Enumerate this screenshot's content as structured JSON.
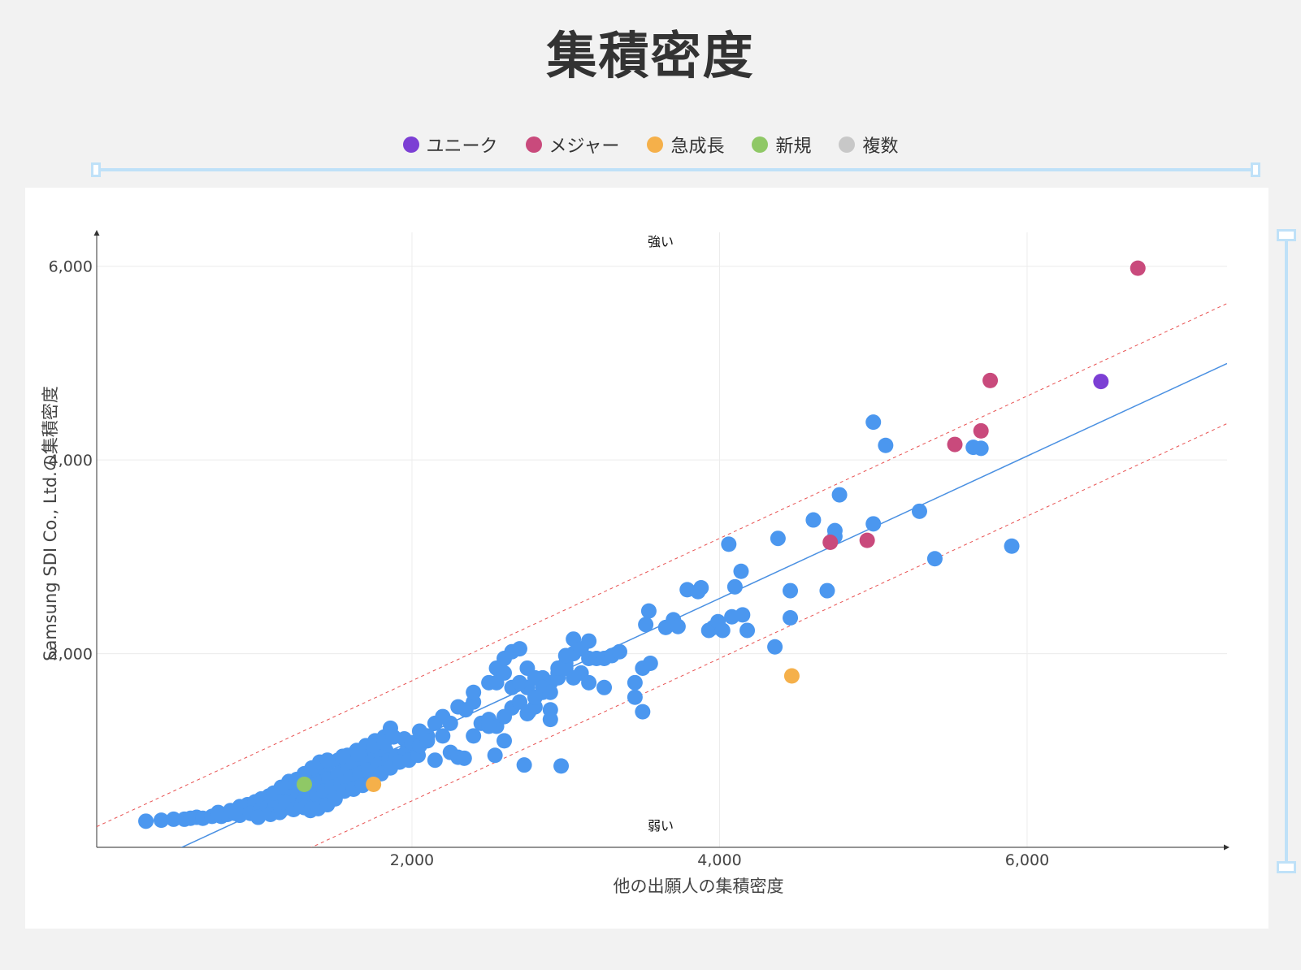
{
  "title": "集積密度",
  "legend": [
    {
      "label": "ユニーク",
      "color": "#7c3fd4"
    },
    {
      "label": "メジャー",
      "color": "#c94a7c"
    },
    {
      "label": "急成長",
      "color": "#f5b04a"
    },
    {
      "label": "新規",
      "color": "#8fc866"
    },
    {
      "label": "複数",
      "color": "#c8c8c8"
    }
  ],
  "chart_data": {
    "type": "scatter",
    "title": "集積密度",
    "xlabel": "他の出願人の集積密度",
    "ylabel": "Samsung SDI Co., Ltd.の集積密度",
    "xlim": [
      -50,
      7300
    ],
    "ylim": [
      0,
      6350
    ],
    "xticks": [
      2000,
      4000,
      6000
    ],
    "xtick_labels": [
      "2,000",
      "4,000",
      "6,000"
    ],
    "yticks": [
      2000,
      4000,
      6000
    ],
    "ytick_labels": [
      "2,000",
      "4,000",
      "6,000"
    ],
    "grid": true,
    "annotations": {
      "top": "強い",
      "bottom": "弱い"
    },
    "trend_line": {
      "slope": 0.735,
      "intercept": -370,
      "color": "#4a90e2"
    },
    "band_offset": 620,
    "band_color": "#e85050",
    "default_color": "#4b97ef",
    "points": [
      [
        270,
        270
      ],
      [
        370,
        280
      ],
      [
        450,
        290
      ],
      [
        520,
        290
      ],
      [
        560,
        300
      ],
      [
        600,
        310
      ],
      [
        640,
        300
      ],
      [
        700,
        320
      ],
      [
        760,
        320
      ],
      [
        800,
        340
      ],
      [
        850,
        350
      ],
      [
        900,
        360
      ],
      [
        950,
        380
      ],
      [
        1000,
        400
      ],
      [
        1050,
        420
      ],
      [
        1100,
        440
      ],
      [
        1150,
        470
      ],
      [
        1200,
        500
      ],
      [
        1250,
        530
      ],
      [
        1300,
        580
      ],
      [
        1350,
        620
      ],
      [
        1400,
        680
      ],
      [
        1450,
        720
      ],
      [
        740,
        360
      ],
      [
        820,
        380
      ],
      [
        880,
        420
      ],
      [
        930,
        440
      ],
      [
        980,
        470
      ],
      [
        1020,
        500
      ],
      [
        1070,
        530
      ],
      [
        1120,
        560
      ],
      [
        1170,
        600
      ],
      [
        1220,
        650
      ],
      [
        1270,
        700
      ],
      [
        1320,
        740
      ],
      [
        1360,
        800
      ],
      [
        1410,
        830
      ],
      [
        1450,
        860
      ],
      [
        1520,
        900
      ],
      [
        1580,
        950
      ],
      [
        1640,
        1000
      ],
      [
        1700,
        1050
      ],
      [
        1760,
        1100
      ],
      [
        1820,
        1140
      ],
      [
        1860,
        1230
      ],
      [
        880,
        330
      ],
      [
        950,
        350
      ],
      [
        1010,
        380
      ],
      [
        1060,
        410
      ],
      [
        1110,
        440
      ],
      [
        1160,
        480
      ],
      [
        1210,
        520
      ],
      [
        1260,
        560
      ],
      [
        1310,
        590
      ],
      [
        1350,
        640
      ],
      [
        1400,
        660
      ],
      [
        1460,
        700
      ],
      [
        1520,
        760
      ],
      [
        1580,
        820
      ],
      [
        1640,
        880
      ],
      [
        1700,
        930
      ],
      [
        1760,
        960
      ],
      [
        1830,
        1000
      ],
      [
        1000,
        310
      ],
      [
        1080,
        340
      ],
      [
        1140,
        360
      ],
      [
        1190,
        410
      ],
      [
        1240,
        430
      ],
      [
        1290,
        470
      ],
      [
        1330,
        500
      ],
      [
        1380,
        540
      ],
      [
        1430,
        580
      ],
      [
        1480,
        620
      ],
      [
        1540,
        650
      ],
      [
        1600,
        720
      ],
      [
        1660,
        760
      ],
      [
        1720,
        800
      ],
      [
        1780,
        860
      ],
      [
        1850,
        900
      ],
      [
        1900,
        940
      ],
      [
        1960,
        980
      ],
      [
        1150,
        390
      ],
      [
        1180,
        460
      ],
      [
        1230,
        390
      ],
      [
        1280,
        430
      ],
      [
        1300,
        410
      ],
      [
        1340,
        380
      ],
      [
        1390,
        400
      ],
      [
        1450,
        440
      ],
      [
        1500,
        500
      ],
      [
        1560,
        580
      ],
      [
        1620,
        600
      ],
      [
        1680,
        640
      ],
      [
        1740,
        700
      ],
      [
        1800,
        760
      ],
      [
        1860,
        820
      ],
      [
        1920,
        880
      ],
      [
        1980,
        900
      ],
      [
        2040,
        950
      ],
      [
        1100,
        560
      ],
      [
        1150,
        620
      ],
      [
        1200,
        680
      ],
      [
        1250,
        700
      ],
      [
        1300,
        760
      ],
      [
        1350,
        820
      ],
      [
        1400,
        880
      ],
      [
        1450,
        900
      ],
      [
        1550,
        940
      ],
      [
        1650,
        960
      ],
      [
        1750,
        1050
      ],
      [
        1820,
        1080
      ],
      [
        1880,
        1140
      ],
      [
        1950,
        1120
      ],
      [
        2000,
        1080
      ],
      [
        2050,
        1200
      ],
      [
        2100,
        1150
      ],
      [
        2150,
        1280
      ],
      [
        2200,
        1350
      ],
      [
        2250,
        1280
      ],
      [
        2300,
        1450
      ],
      [
        2350,
        1420
      ],
      [
        2400,
        1500
      ],
      [
        2450,
        1280
      ],
      [
        2500,
        1320
      ],
      [
        2550,
        1250
      ],
      [
        2600,
        1100
      ],
      [
        2650,
        1440
      ],
      [
        2700,
        1500
      ],
      [
        2750,
        1380
      ],
      [
        2800,
        1450
      ],
      [
        2900,
        1420
      ],
      [
        2050,
        1050
      ],
      [
        2100,
        1100
      ],
      [
        2150,
        900
      ],
      [
        2200,
        1150
      ],
      [
        2250,
        980
      ],
      [
        2300,
        930
      ],
      [
        2400,
        1150
      ],
      [
        2500,
        1250
      ],
      [
        2600,
        1350
      ],
      [
        2700,
        1500
      ],
      [
        2760,
        1400
      ],
      [
        2850,
        1600
      ],
      [
        2900,
        1700
      ],
      [
        2950,
        1800
      ],
      [
        3000,
        1900
      ],
      [
        2400,
        1600
      ],
      [
        2500,
        1700
      ],
      [
        2550,
        1700
      ],
      [
        2600,
        1950
      ],
      [
        2650,
        2020
      ],
      [
        2700,
        2050
      ],
      [
        2750,
        1650
      ],
      [
        2800,
        1550
      ],
      [
        2850,
        1750
      ],
      [
        2900,
        1320
      ],
      [
        2950,
        1750
      ],
      [
        3000,
        1850
      ],
      [
        3050,
        2150
      ],
      [
        3100,
        1800
      ],
      [
        3150,
        1950
      ],
      [
        3200,
        1950
      ],
      [
        3250,
        1950
      ],
      [
        3300,
        1980
      ],
      [
        3350,
        2020
      ],
      [
        2550,
        1850
      ],
      [
        2600,
        1800
      ],
      [
        2650,
        1650
      ],
      [
        2700,
        1700
      ],
      [
        2750,
        1850
      ],
      [
        2800,
        1750
      ],
      [
        2850,
        1650
      ],
      [
        2900,
        1600
      ],
      [
        2950,
        1850
      ],
      [
        3000,
        1980
      ],
      [
        3050,
        2000
      ],
      [
        3100,
        2050
      ],
      [
        3150,
        2130
      ],
      [
        2340,
        920
      ],
      [
        2540,
        950
      ],
      [
        2730,
        850
      ],
      [
        2970,
        840
      ],
      [
        3450,
        1550
      ],
      [
        3500,
        1400
      ],
      [
        3450,
        1700
      ],
      [
        3500,
        1850
      ],
      [
        3550,
        1900
      ],
      [
        3250,
        1650
      ],
      [
        3150,
        1700
      ],
      [
        3050,
        1750
      ],
      [
        3520,
        2300
      ],
      [
        3540,
        2440
      ],
      [
        3650,
        2270
      ],
      [
        3700,
        2350
      ],
      [
        3730,
        2280
      ],
      [
        3790,
        2660
      ],
      [
        3860,
        2640
      ],
      [
        3880,
        2680
      ],
      [
        3930,
        2240
      ],
      [
        3960,
        2270
      ],
      [
        3990,
        2330
      ],
      [
        4060,
        3130
      ],
      [
        4100,
        2690
      ],
      [
        4140,
        2850
      ],
      [
        4020,
        2240
      ],
      [
        4080,
        2380
      ],
      [
        4150,
        2400
      ],
      [
        4180,
        2240
      ],
      [
        4360,
        2070
      ],
      [
        4380,
        3190
      ],
      [
        4460,
        2370
      ],
      [
        4460,
        2650
      ],
      [
        4610,
        3380
      ],
      [
        4700,
        2650
      ],
      [
        4750,
        3270
      ],
      [
        4750,
        3210
      ],
      [
        4780,
        3640
      ],
      [
        5000,
        3340
      ],
      [
        5000,
        4390
      ],
      [
        5080,
        4150
      ],
      [
        5300,
        3470
      ],
      [
        5400,
        2980
      ],
      [
        5650,
        4130
      ],
      [
        5700,
        4120
      ],
      [
        5900,
        3110
      ]
    ],
    "special_points": [
      {
        "x": 1300,
        "y": 650,
        "category": "新規"
      },
      {
        "x": 1750,
        "y": 650,
        "category": "急成長"
      },
      {
        "x": 4470,
        "y": 1770,
        "category": "急成長"
      },
      {
        "x": 4720,
        "y": 3150,
        "category": "メジャー"
      },
      {
        "x": 4960,
        "y": 3170,
        "category": "メジャー"
      },
      {
        "x": 5530,
        "y": 4160,
        "category": "メジャー"
      },
      {
        "x": 5700,
        "y": 4300,
        "category": "メジャー"
      },
      {
        "x": 5760,
        "y": 4820,
        "category": "メジャー"
      },
      {
        "x": 6720,
        "y": 5980,
        "category": "メジャー"
      },
      {
        "x": 6480,
        "y": 4810,
        "category": "ユニーク"
      }
    ]
  }
}
